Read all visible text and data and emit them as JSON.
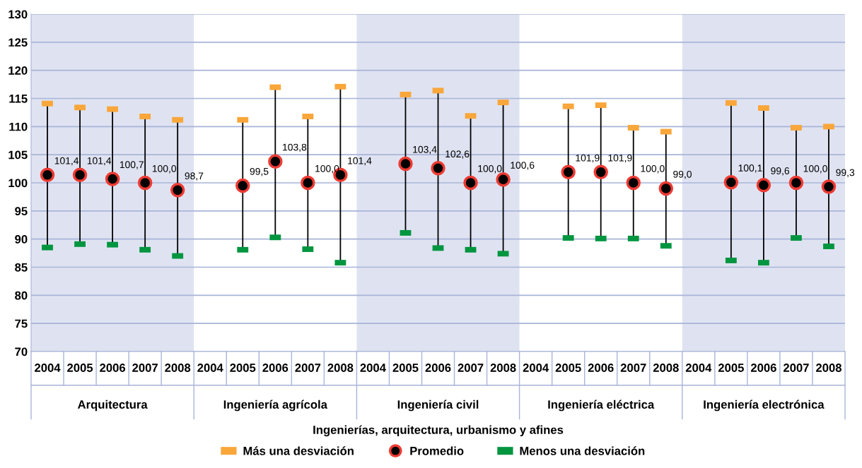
{
  "chart_data": {
    "type": "scatter",
    "xlabel": "Ingenierías, arquitectura, urbanismo y afines",
    "categories": [
      "2004",
      "2005",
      "2006",
      "2007",
      "2008",
      "2004",
      "2005",
      "2006",
      "2007",
      "2008",
      "2004",
      "2005",
      "2006",
      "2007",
      "2008",
      "2004",
      "2005",
      "2006",
      "2007",
      "2008",
      "2004",
      "2005",
      "2006",
      "2007",
      "2008"
    ],
    "annotations": [
      "Arquitectura",
      "Ingeniería agrícola",
      "Ingeniería civil",
      "Ingeniería eléctrica",
      "Ingeniería electrónica"
    ],
    "series": [
      {
        "name": "Más una desviación",
        "color": "#f9a63a",
        "values": [
          114.1,
          113.4,
          113.1,
          111.8,
          111.2,
          null,
          111.2,
          117.0,
          111.8,
          117.1,
          null,
          115.7,
          116.4,
          111.9,
          114.3,
          null,
          113.6,
          113.8,
          109.8,
          109.1,
          null,
          114.2,
          113.3,
          109.8,
          110.0
        ]
      },
      {
        "name": "Promedio",
        "color": "#ee3b33",
        "marker": "circle",
        "values": [
          101.4,
          101.4,
          100.7,
          100.0,
          98.7,
          null,
          99.5,
          103.8,
          100.0,
          101.4,
          null,
          103.4,
          102.6,
          100.0,
          100.6,
          null,
          101.9,
          101.9,
          100.0,
          99.0,
          null,
          100.1,
          99.6,
          100.0,
          99.3
        ],
        "value_labels": [
          "101,4",
          "101,4",
          "100,7",
          "100,0",
          "98,7",
          null,
          "99,5",
          "103,8",
          "100,0",
          "101,4",
          null,
          "103,4",
          "102,6",
          "100,0",
          "100,6",
          null,
          "101,9",
          "101,9",
          "100,0",
          "99,0",
          null,
          "100,1",
          "99,6",
          "100,0",
          "99,3"
        ]
      },
      {
        "name": "Menos una desviación",
        "color": "#00953f",
        "values": [
          88.5,
          89.1,
          89.0,
          88.1,
          87.0,
          null,
          88.1,
          90.3,
          88.2,
          85.8,
          null,
          91.1,
          88.4,
          88.1,
          87.4,
          null,
          90.2,
          90.1,
          90.1,
          88.8,
          null,
          86.2,
          85.8,
          90.2,
          88.7
        ]
      }
    ],
    "ylim": [
      70,
      130
    ],
    "yticks": [
      70,
      75,
      80,
      85,
      90,
      95,
      100,
      105,
      110,
      115,
      120,
      125,
      130
    ],
    "grid": "y",
    "legend": "bottom"
  }
}
